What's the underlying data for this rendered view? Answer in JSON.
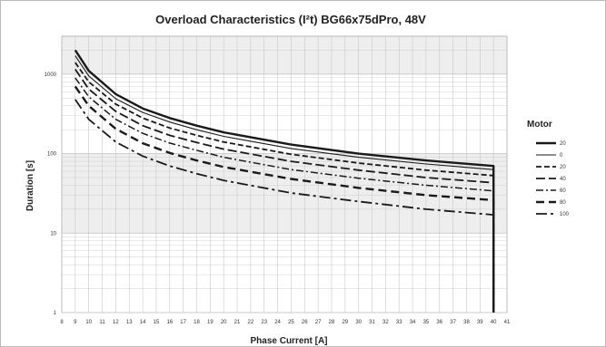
{
  "chart_data": {
    "type": "line",
    "title": "Overload Characteristics (I²t) BG66x75dPro, 48V",
    "xlabel": "Phase Current [A]",
    "ylabel": "Duration [s]",
    "y_scale": "log",
    "xlim": [
      8,
      41
    ],
    "ylim": [
      1,
      3000
    ],
    "x_ticks": [
      "8",
      "9",
      "10",
      "11",
      "12",
      "13",
      "14",
      "15",
      "16",
      "17",
      "18",
      "19",
      "20",
      "21",
      "22",
      "23",
      "24",
      "25",
      "26",
      "27",
      "28",
      "29",
      "30",
      "31",
      "32",
      "33",
      "34",
      "35",
      "36",
      "37",
      "38",
      "39",
      "40",
      "41"
    ],
    "y_ticks": [
      {
        "value": 1,
        "label": "1"
      },
      {
        "value": 10,
        "label": "10"
      },
      {
        "value": 100,
        "label": "100"
      },
      {
        "value": 1000,
        "label": "1000"
      }
    ],
    "grid": true,
    "legend": {
      "title": "Motor",
      "position": "right"
    },
    "x": [
      9,
      10,
      12,
      14,
      16,
      18,
      20,
      25,
      30,
      35,
      40
    ],
    "series": [
      {
        "name": "20",
        "style": "solid",
        "values": [
          2000,
          1100,
          560,
          370,
          280,
          225,
          185,
          130,
          100,
          82,
          70
        ]
      },
      {
        "name": "0",
        "style": "solid-thin",
        "values": [
          1700,
          950,
          490,
          330,
          250,
          200,
          165,
          116,
          90,
          74,
          63
        ]
      },
      {
        "name": "20",
        "style": "dash",
        "values": [
          1400,
          800,
          420,
          280,
          210,
          170,
          140,
          98,
          76,
          62,
          53
        ]
      },
      {
        "name": "40",
        "style": "dash-long",
        "values": [
          1150,
          650,
          340,
          225,
          170,
          138,
          114,
          80,
          62,
          50,
          43
        ]
      },
      {
        "name": "60",
        "style": "dash-dot",
        "values": [
          900,
          520,
          270,
          180,
          136,
          110,
          90,
          63,
          49,
          40,
          34
        ]
      },
      {
        "name": "80",
        "style": "dash-heavy",
        "values": [
          700,
          400,
          205,
          135,
          102,
          82,
          68,
          48,
          37,
          30,
          26
        ]
      },
      {
        "name": "100",
        "style": "dash-dot-long",
        "values": [
          480,
          270,
          140,
          93,
          70,
          56,
          46,
          32,
          25,
          20,
          17
        ]
      }
    ],
    "colors": {
      "line": "#1a1a1a",
      "grid": "#c8c8c8",
      "band": "#eeeeee",
      "background": "#ffffff"
    }
  }
}
